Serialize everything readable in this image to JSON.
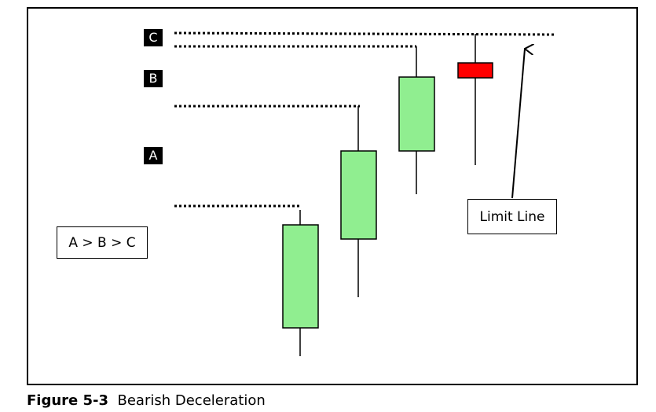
{
  "labels": {
    "c": "C",
    "b": "B",
    "a": "A"
  },
  "relation_box": "A > B > C",
  "limit_line_box": "Limit Line",
  "caption": {
    "number": "Figure 5-3",
    "title": "Bearish Deceleration"
  },
  "colors": {
    "bullish_candle": "#90ee90",
    "bearish_candle": "#ff0000",
    "outline": "#000000"
  }
}
